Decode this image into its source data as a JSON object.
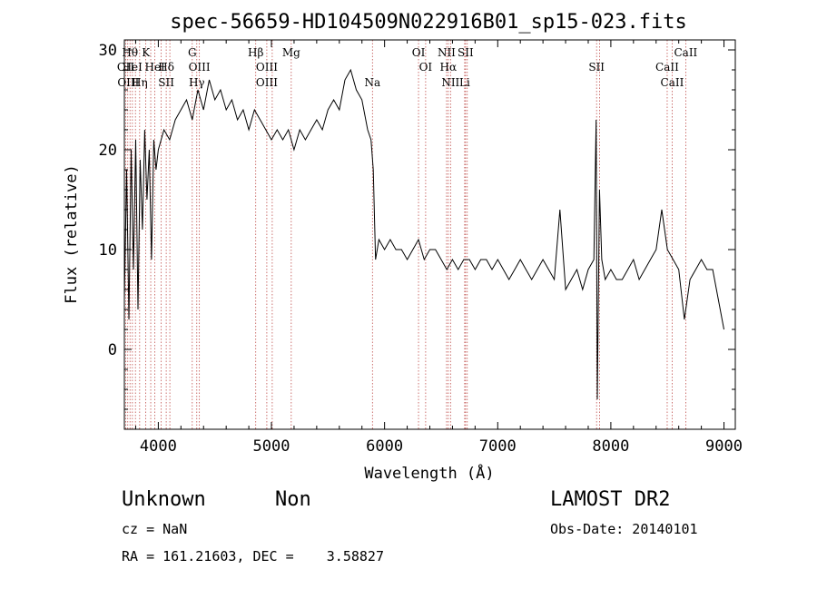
{
  "chart_data": {
    "type": "line",
    "title": "spec-56659-HD104509N022916B01_sp15-023.fits",
    "xlabel": "Wavelength (Å)",
    "ylabel": "Flux (relative)",
    "xlim": [
      3700,
      9100
    ],
    "ylim": [
      -8,
      31
    ],
    "x_ticks": [
      4000,
      5000,
      6000,
      7000,
      8000,
      9000
    ],
    "y_ticks": [
      0,
      10,
      20,
      30
    ],
    "grid": false,
    "series": [
      {
        "x": [
          3700,
          3720,
          3740,
          3760,
          3780,
          3800,
          3820,
          3840,
          3860,
          3880,
          3900,
          3920,
          3940,
          3960,
          3980,
          4000,
          4050,
          4100,
          4150,
          4200,
          4250,
          4300,
          4350,
          4400,
          4450,
          4500,
          4550,
          4600,
          4650,
          4700,
          4750,
          4800,
          4850,
          4900,
          4950,
          5000,
          5050,
          5100,
          5150,
          5200,
          5250,
          5300,
          5350,
          5400,
          5450,
          5500,
          5550,
          5600,
          5650,
          5700,
          5750,
          5800,
          5850,
          5880,
          5900,
          5920,
          5950,
          6000,
          6050,
          6100,
          6150,
          6200,
          6250,
          6300,
          6350,
          6400,
          6450,
          6500,
          6550,
          6600,
          6650,
          6700,
          6750,
          6800,
          6850,
          6900,
          6950,
          7000,
          7050,
          7100,
          7150,
          7200,
          7250,
          7300,
          7350,
          7400,
          7450,
          7500,
          7550,
          7600,
          7650,
          7700,
          7750,
          7800,
          7850,
          7870,
          7880,
          7900,
          7920,
          7950,
          8000,
          8050,
          8100,
          8150,
          8200,
          8250,
          8300,
          8350,
          8400,
          8450,
          8500,
          8550,
          8600,
          8650,
          8700,
          8750,
          8800,
          8850,
          8900,
          8950,
          9000
        ],
        "y": [
          5,
          18,
          3,
          20,
          8,
          21,
          4,
          19,
          12,
          22,
          15,
          20,
          9,
          21,
          18,
          20,
          22,
          21,
          23,
          24,
          25,
          23,
          26,
          24,
          27,
          25,
          26,
          24,
          25,
          23,
          24,
          22,
          24,
          23,
          22,
          21,
          22,
          21,
          22,
          20,
          22,
          21,
          22,
          23,
          22,
          24,
          25,
          24,
          27,
          28,
          26,
          25,
          22,
          21,
          18,
          9,
          11,
          10,
          11,
          10,
          10,
          9,
          10,
          11,
          9,
          10,
          10,
          9,
          8,
          9,
          8,
          9,
          9,
          8,
          9,
          9,
          8,
          9,
          8,
          7,
          8,
          9,
          8,
          7,
          8,
          9,
          8,
          7,
          14,
          6,
          7,
          8,
          6,
          8,
          9,
          23,
          -5,
          16,
          9,
          7,
          8,
          7,
          7,
          8,
          9,
          7,
          8,
          9,
          10,
          14,
          10,
          9,
          8,
          3,
          7,
          8,
          9,
          8,
          8,
          5,
          2
        ]
      }
    ],
    "line_labels": [
      {
        "x": 3712,
        "text": "OII",
        "row": 2
      },
      {
        "x": 3735,
        "text": "OIII",
        "row": 3
      },
      {
        "x": 3750,
        "text": "Hθ",
        "row": 1
      },
      {
        "x": 3770,
        "text": "HeI",
        "row": 2
      },
      {
        "x": 3835,
        "text": "Hη",
        "row": 3
      },
      {
        "x": 3890,
        "text": "K",
        "row": 1
      },
      {
        "x": 3970,
        "text": "HeI",
        "row": 2
      },
      {
        "x": 4070,
        "text": "Hδ",
        "row": 2
      },
      {
        "x": 4070,
        "text": "SII",
        "row": 3
      },
      {
        "x": 4300,
        "text": "G",
        "row": 1
      },
      {
        "x": 4363,
        "text": "OIII",
        "row": 2
      },
      {
        "x": 4340,
        "text": "Hγ",
        "row": 3
      },
      {
        "x": 4861,
        "text": "Hβ",
        "row": 1
      },
      {
        "x": 4959,
        "text": "OIII",
        "row": 2
      },
      {
        "x": 4959,
        "text": "OIII",
        "row": 3
      },
      {
        "x": 5175,
        "text": "Mg",
        "row": 1
      },
      {
        "x": 5893,
        "text": "Na",
        "row": 3
      },
      {
        "x": 6300,
        "text": "OI",
        "row": 1
      },
      {
        "x": 6363,
        "text": "OI",
        "row": 2
      },
      {
        "x": 6548,
        "text": "NII",
        "row": 1
      },
      {
        "x": 6563,
        "text": "Hα",
        "row": 2
      },
      {
        "x": 6583,
        "text": "NII",
        "row": 3
      },
      {
        "x": 6716,
        "text": "SII",
        "row": 1
      },
      {
        "x": 6708,
        "text": "Li",
        "row": 3
      },
      {
        "x": 7874,
        "text": "SII",
        "row": 2
      },
      {
        "x": 8498,
        "text": "CaII",
        "row": 2
      },
      {
        "x": 8542,
        "text": "CaII",
        "row": 3
      },
      {
        "x": 8662,
        "text": "CaII",
        "row": 1
      }
    ],
    "line_markers": [
      3712,
      3730,
      3750,
      3771,
      3798,
      3835,
      3889,
      3933,
      3968,
      4026,
      4070,
      4102,
      4300,
      4340,
      4363,
      4861,
      4959,
      5007,
      5175,
      5893,
      6300,
      6363,
      6548,
      6563,
      6583,
      6708,
      6716,
      6731,
      7874,
      7900,
      8498,
      8542,
      8662
    ]
  },
  "footer": {
    "class_label": "Unknown",
    "subclass_label": "Non",
    "cz_text": "cz = NaN",
    "coords_text": "RA = 161.21603, DEC =    3.58827",
    "survey": "LAMOST DR2",
    "obs_date": "Obs-Date: 20140101"
  }
}
